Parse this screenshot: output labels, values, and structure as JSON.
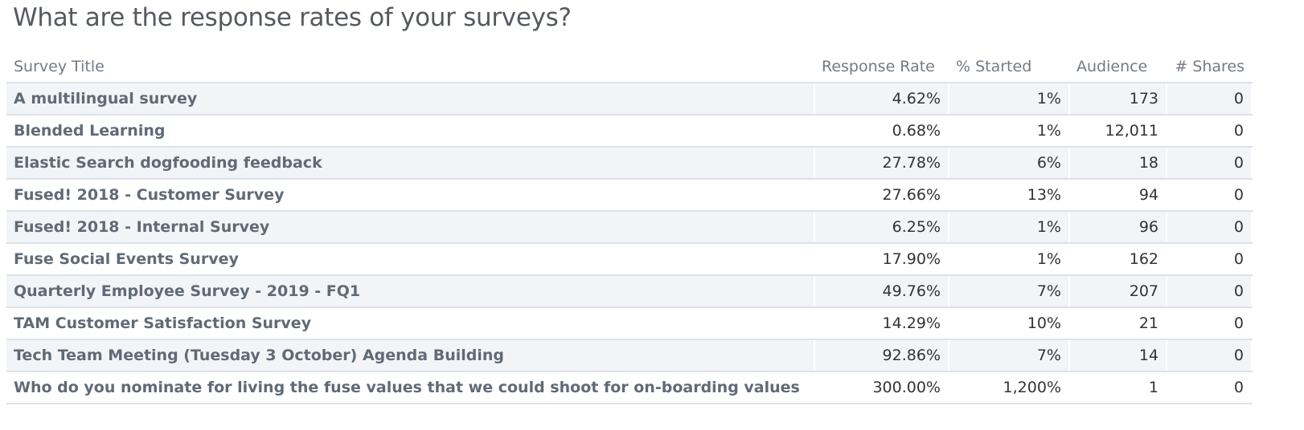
{
  "header": {
    "title": "What are the response rates of your surveys?"
  },
  "table": {
    "columns": [
      "Survey Title",
      "Response Rate",
      "% Started",
      "Audience",
      "# Shares"
    ],
    "rows": [
      [
        "A multilingual survey",
        "4.62%",
        "1%",
        "173",
        "0"
      ],
      [
        "Blended Learning",
        "0.68%",
        "1%",
        "12,011",
        "0"
      ],
      [
        "Elastic Search dogfooding feedback",
        "27.78%",
        "6%",
        "18",
        "0"
      ],
      [
        "Fused! 2018 - Customer Survey",
        "27.66%",
        "13%",
        "94",
        "0"
      ],
      [
        "Fused! 2018 - Internal Survey",
        "6.25%",
        "1%",
        "96",
        "0"
      ],
      [
        "Fuse Social Events Survey",
        "17.90%",
        "1%",
        "162",
        "0"
      ],
      [
        "Quarterly Employee Survey - 2019 - FQ1",
        "49.76%",
        "7%",
        "207",
        "0"
      ],
      [
        "TAM Customer Satisfaction Survey",
        "14.29%",
        "10%",
        "21",
        "0"
      ],
      [
        "Tech Team Meeting (Tuesday 3 October) Agenda Building",
        "92.86%",
        "7%",
        "14",
        "0"
      ],
      [
        "Who do you nominate for living the fuse values that we could shoot for on-boarding values",
        "300.00%",
        "1,200%",
        "1",
        "0"
      ]
    ]
  }
}
